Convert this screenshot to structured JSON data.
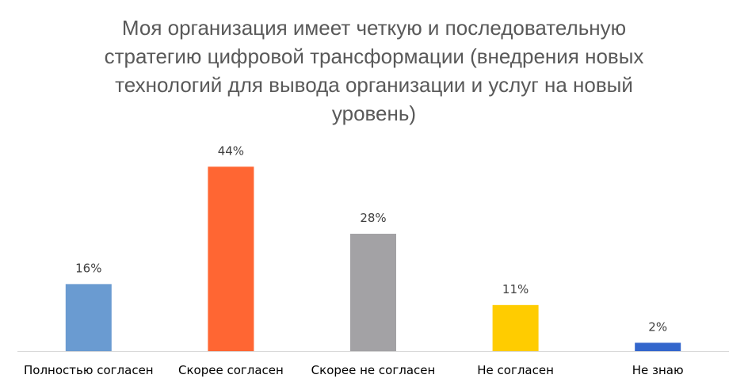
{
  "chart_data": {
    "type": "bar",
    "title_lines": [
      "Моя организация имеет четкую и последовательную",
      "стратегию цифровой трансформации (внедрения новых",
      "технологий для вывода организации и услуг на новый",
      "уровень)"
    ],
    "categories": [
      "Полностью согласен",
      "Скорее согласен",
      "Скорее не согласен",
      "Не согласен",
      "Не знаю"
    ],
    "values": [
      16,
      44,
      28,
      11,
      2
    ],
    "value_labels": [
      "16%",
      "44%",
      "28%",
      "11%",
      "2%"
    ],
    "colors": [
      "#6a9bd1",
      "#ff6633",
      "#a3a2a5",
      "#ffcc00",
      "#3366cc"
    ],
    "ylim": [
      0,
      45
    ],
    "grid": false,
    "legend": "none"
  }
}
